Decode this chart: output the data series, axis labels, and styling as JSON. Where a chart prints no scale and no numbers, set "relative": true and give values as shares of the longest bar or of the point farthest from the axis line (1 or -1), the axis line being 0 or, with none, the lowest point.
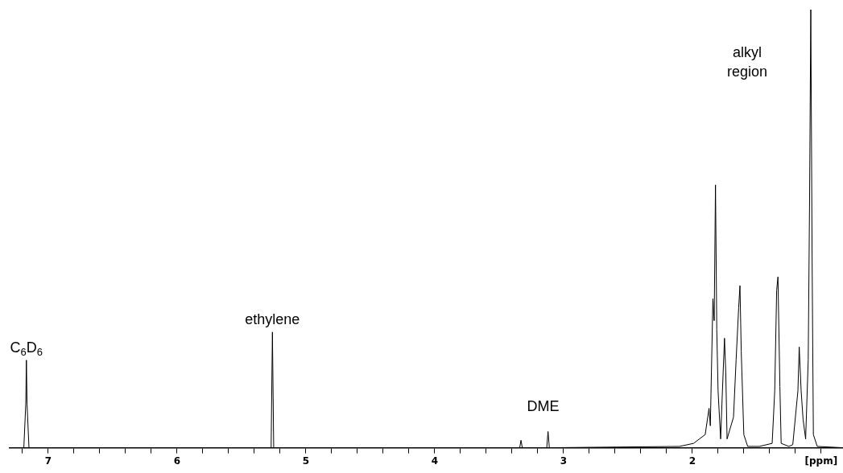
{
  "chart_data": {
    "type": "line",
    "relative": true,
    "color": "#000000",
    "grid": false,
    "legend": false,
    "marker": "none",
    "line_style": "solid",
    "x": [
      7.3,
      7.19,
      7.175,
      7.17,
      7.165,
      7.15,
      5.27,
      5.26,
      5.25,
      3.34,
      3.33,
      3.32,
      3.13,
      3.12,
      3.11,
      2.1,
      1.99,
      1.9,
      1.87,
      1.86,
      1.84,
      1.83,
      1.82,
      1.81,
      1.8,
      1.78,
      1.77,
      1.75,
      1.74,
      1.73,
      1.68,
      1.66,
      1.64,
      1.63,
      1.62,
      1.6,
      1.57,
      1.48,
      1.38,
      1.36,
      1.345,
      1.335,
      1.32,
      1.31,
      1.25,
      1.22,
      1.18,
      1.17,
      1.155,
      1.14,
      1.12,
      1.1,
      1.09,
      1.08,
      1.07,
      1.06,
      1.03,
      0.83
    ],
    "values": [
      0,
      0,
      0.1,
      0.2,
      0.1,
      0,
      0,
      0.264,
      0,
      0,
      0.017,
      0,
      0,
      0.037,
      0,
      0.003,
      0.01,
      0.03,
      0.09,
      0.05,
      0.34,
      0.29,
      0.6,
      0.27,
      0.13,
      0.02,
      0.1,
      0.25,
      0.17,
      0.02,
      0.07,
      0.2,
      0.32,
      0.37,
      0.22,
      0.03,
      0.003,
      0.003,
      0.01,
      0.13,
      0.36,
      0.39,
      0.14,
      0.01,
      0.003,
      0.007,
      0.13,
      0.23,
      0.13,
      0.065,
      0.02,
      0.2,
      0.55,
      1.0,
      0.44,
      0.03,
      0.003,
      0
    ],
    "xlim": [
      7.3,
      0.83
    ],
    "xticks": [
      {
        "value": 7.2,
        "label": null
      },
      7,
      {
        "value": 6.8,
        "label": null
      },
      {
        "value": 6.6,
        "label": null
      },
      {
        "value": 6.4,
        "label": null
      },
      {
        "value": 6.2,
        "label": null
      },
      6,
      {
        "value": 5.8,
        "label": null
      },
      {
        "value": 5.6,
        "label": null
      },
      {
        "value": 5.4,
        "label": null
      },
      {
        "value": 5.2,
        "label": null
      },
      5,
      {
        "value": 4.8,
        "label": null
      },
      {
        "value": 4.6,
        "label": null
      },
      {
        "value": 4.4,
        "label": null
      },
      {
        "value": 4.2,
        "label": null
      },
      4,
      {
        "value": 3.8,
        "label": null
      },
      {
        "value": 3.6,
        "label": null
      },
      {
        "value": 3.4,
        "label": null
      },
      {
        "value": 3.2,
        "label": null
      },
      3,
      {
        "value": 2.8,
        "label": null
      },
      {
        "value": 2.6,
        "label": null
      },
      {
        "value": 2.4,
        "label": null
      },
      {
        "value": 2.2,
        "label": null
      },
      2,
      {
        "value": 1.8,
        "label": null
      },
      {
        "value": 1.6,
        "label": null
      },
      {
        "value": 1.4,
        "label": null
      },
      {
        "value": 1.2,
        "label": null
      },
      {
        "value": 1,
        "label": "[ppm]"
      }
    ],
    "annotations": [
      {
        "text": "C$_{6}$D$_{6}$",
        "x": 7.17,
        "y": 0.2
      },
      {
        "text": "ethylene",
        "x": 5.26,
        "y": 0.264
      },
      "DME",
      "alkyl region"
    ]
  }
}
